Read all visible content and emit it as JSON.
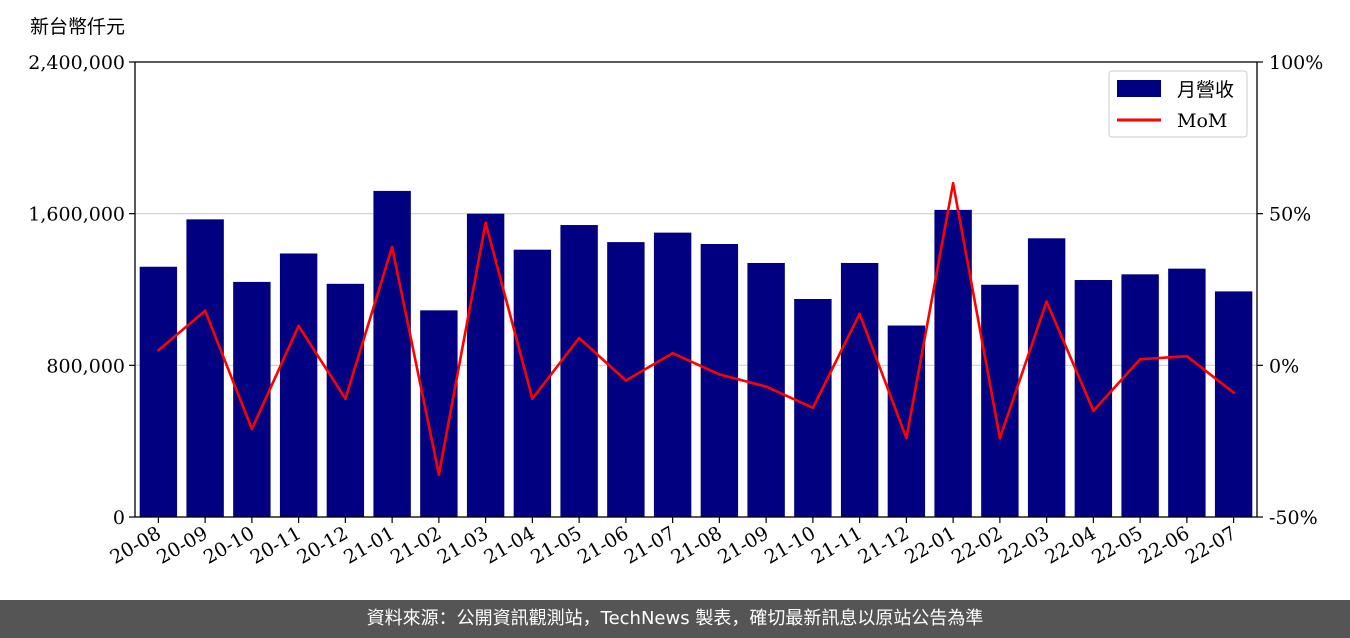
{
  "chart_data": {
    "type": "bar",
    "unit_label": "新台幣仟元",
    "categories": [
      "20-08",
      "20-09",
      "20-10",
      "20-11",
      "20-12",
      "21-01",
      "21-02",
      "21-03",
      "21-04",
      "21-05",
      "21-06",
      "21-07",
      "21-08",
      "21-09",
      "21-10",
      "21-11",
      "21-12",
      "22-01",
      "22-02",
      "22-03",
      "22-04",
      "22-05",
      "22-06",
      "22-07"
    ],
    "series": [
      {
        "name": "月營收",
        "type": "bar",
        "axis": "left",
        "color": "#000080",
        "values": [
          1320000,
          1570000,
          1240000,
          1390000,
          1230000,
          1720000,
          1090000,
          1600000,
          1410000,
          1540000,
          1450000,
          1500000,
          1440000,
          1340000,
          1150000,
          1340000,
          1010000,
          1620000,
          1225000,
          1470000,
          1250000,
          1280000,
          1310000,
          1190000
        ]
      },
      {
        "name": "MoM",
        "type": "line",
        "axis": "right",
        "color": "#ff0000",
        "values": [
          5,
          18,
          -21,
          13,
          -11,
          39,
          -36,
          47,
          -11,
          9,
          -5,
          4,
          -3,
          -7,
          -14,
          17,
          -24,
          60,
          -24,
          21,
          -15,
          2,
          3,
          -9
        ]
      }
    ],
    "y_left": {
      "min": 0,
      "max": 2400000,
      "ticks": [
        "0",
        "800,000",
        "1,600,000",
        "2,400,000"
      ],
      "tick_values": [
        0,
        800000,
        1600000,
        2400000
      ]
    },
    "y_right": {
      "min": -50,
      "max": 100,
      "ticks": [
        "-50%",
        "0%",
        "50%",
        "100%"
      ],
      "tick_values": [
        -50,
        0,
        50,
        100
      ]
    },
    "grid": "horizontal",
    "legend": {
      "position": "top-right",
      "items": [
        "月營收",
        "MoM"
      ]
    }
  },
  "footer": {
    "text": "資料來源：公開資訊觀測站，TechNews 製表，確切最新訊息以原站公告為準"
  }
}
